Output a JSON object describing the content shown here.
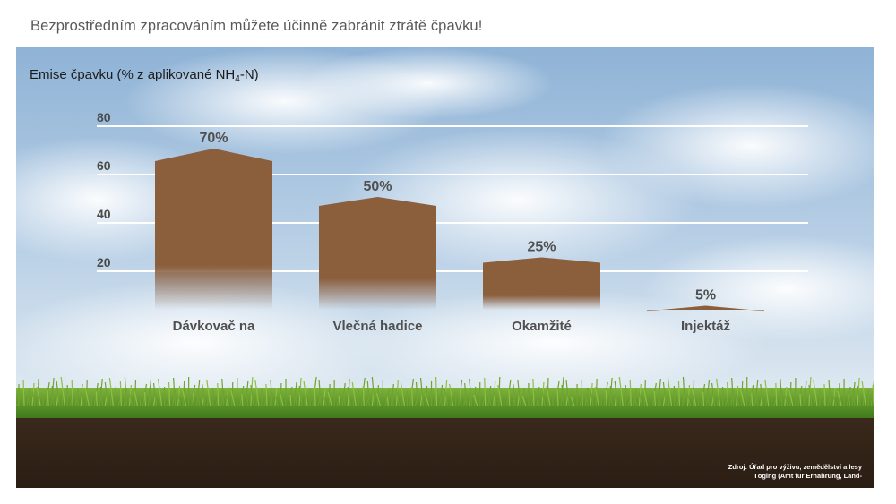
{
  "headline": "Bezprostředním zpracováním můžete účinně zabránit ztrátě čpavku!",
  "chart_data": {
    "type": "bar",
    "ylabel": "Emise čpavku (% z aplikované NH",
    "ylabel_sub": "4",
    "ylabel_suffix": "-N)",
    "yticks": [
      80,
      60,
      40,
      20
    ],
    "ylim": [
      0,
      80
    ],
    "categories": [
      "Dávkovač na",
      "Vlečná hadice",
      "Okamžité",
      "Injektáž"
    ],
    "values": [
      70,
      50,
      25,
      5
    ],
    "value_labels": [
      "70%",
      "50%",
      "25%",
      "5%"
    ],
    "grid": true,
    "bar_color": "#8b5e3c"
  },
  "source_note": "Zdroj: Úřad pro výživu, zemědělství a lesy Töging (Amt für Ernährung, Land-"
}
